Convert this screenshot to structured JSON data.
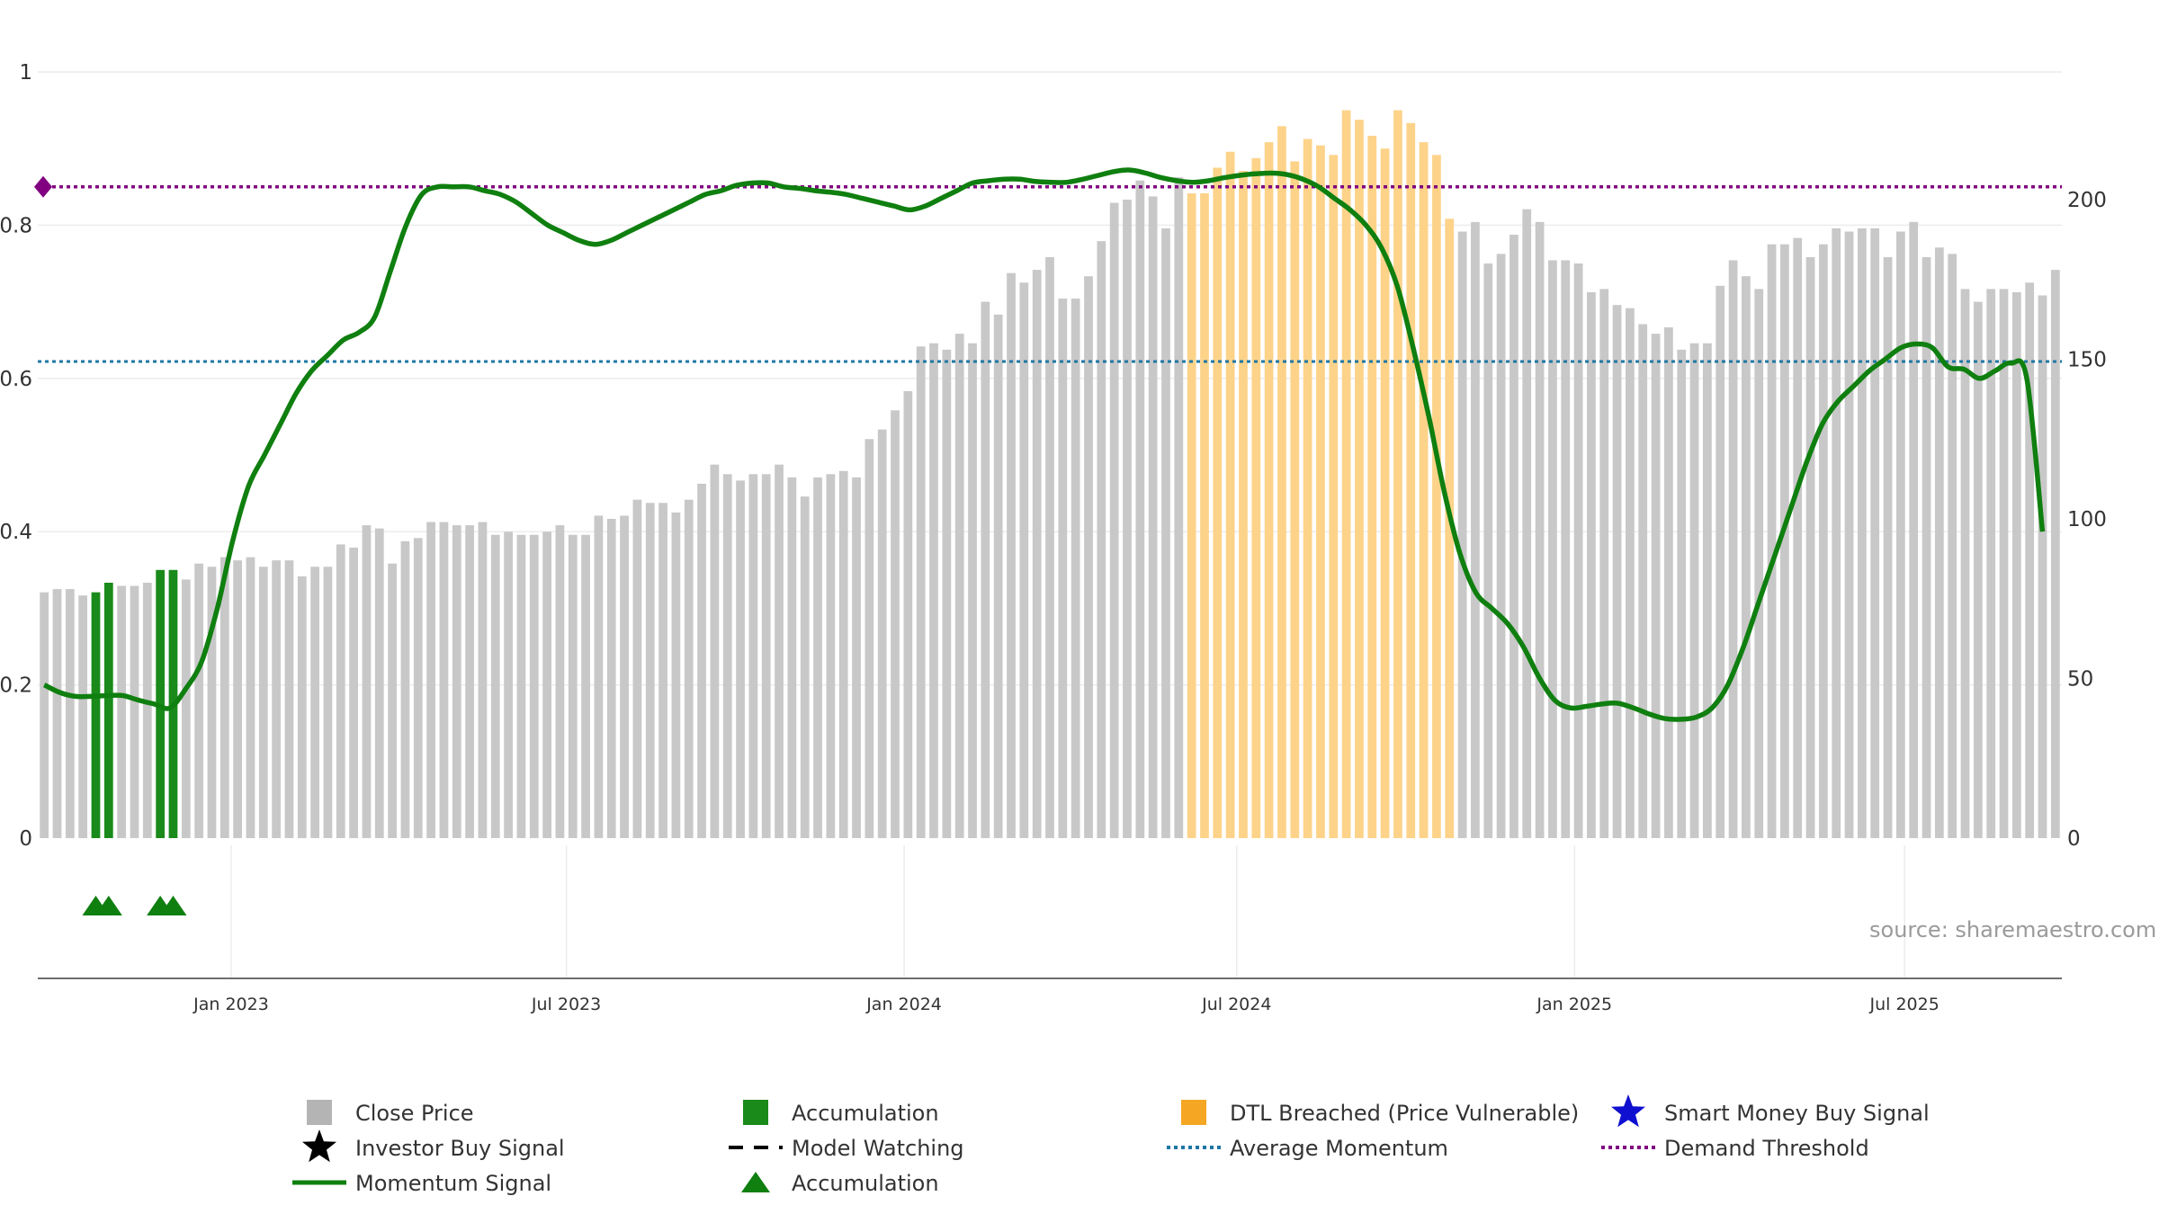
{
  "chart_data": {
    "type": "bar",
    "title": "",
    "source": "source: sharemaestro.com",
    "x_ticks": [
      {
        "label": "Jan 2023",
        "week": 15
      },
      {
        "label": "Jul 2023",
        "week": 41
      },
      {
        "label": "Jan 2024",
        "week": 67.2
      },
      {
        "label": "Jul 2024",
        "week": 93
      },
      {
        "label": "Jan 2025",
        "week": 119.2
      },
      {
        "label": "Jul 2025",
        "week": 144.8
      }
    ],
    "left_axis": {
      "ticks": [
        "0",
        "0.2",
        "0.4",
        "0.6",
        "0.8",
        "1"
      ],
      "ylim": [
        0,
        1
      ]
    },
    "right_axis": {
      "ticks": [
        "0",
        "50",
        "100",
        "150",
        "200"
      ],
      "ylim": [
        0,
        240
      ]
    },
    "average_momentum": 0.622,
    "demand_threshold": 0.85,
    "categories_count": 157,
    "close_price": [
      77,
      78,
      78,
      76,
      77,
      80,
      79,
      79,
      80,
      84,
      84,
      81,
      86,
      85,
      88,
      87,
      88,
      85,
      87,
      87,
      82,
      85,
      85,
      92,
      91,
      98,
      97,
      86,
      93,
      94,
      99,
      99,
      98,
      98,
      99,
      95,
      96,
      95,
      95,
      96,
      98,
      95,
      95,
      101,
      100,
      101,
      106,
      105,
      105,
      102,
      106,
      111,
      117,
      114,
      112,
      114,
      114,
      117,
      113,
      107,
      113,
      114,
      115,
      113,
      125,
      128,
      134,
      140,
      154,
      155,
      153,
      158,
      155,
      168,
      164,
      177,
      174,
      178,
      182,
      169,
      169,
      176,
      187,
      199,
      200,
      206,
      201,
      191,
      207,
      202,
      202,
      210,
      215,
      209,
      213,
      218,
      223,
      212,
      219,
      217,
      214,
      228,
      225,
      220,
      216,
      228,
      224,
      218,
      214,
      194,
      190,
      193,
      180,
      183,
      189,
      197,
      193,
      181,
      181,
      180,
      171,
      172,
      167,
      166,
      161,
      158,
      160,
      153,
      155,
      155,
      173,
      181,
      176,
      172,
      186,
      186,
      188,
      182,
      186,
      191,
      190,
      191,
      191,
      182,
      190,
      193,
      182,
      185,
      183,
      172,
      168,
      172,
      172,
      171,
      174,
      170,
      178
    ],
    "accumulation_bars": [
      4,
      5,
      9,
      10
    ],
    "dtl_breached_range": [
      89,
      109
    ],
    "accumulation_markers": [
      4,
      5,
      9,
      10
    ],
    "momentum_signal": [
      0.2,
      0.19,
      0.185,
      0.185,
      0.186,
      0.186,
      0.18,
      0.175,
      0.17,
      0.195,
      0.23,
      0.3,
      0.39,
      0.46,
      0.5,
      0.54,
      0.58,
      0.61,
      0.63,
      0.65,
      0.66,
      0.68,
      0.74,
      0.8,
      0.84,
      0.85,
      0.85,
      0.85,
      0.845,
      0.84,
      0.83,
      0.815,
      0.8,
      0.79,
      0.78,
      0.775,
      0.78,
      0.79,
      0.8,
      0.81,
      0.82,
      0.83,
      0.84,
      0.845,
      0.852,
      0.855,
      0.855,
      0.85,
      0.848,
      0.845,
      0.843,
      0.84,
      0.835,
      0.83,
      0.825,
      0.82,
      0.825,
      0.835,
      0.845,
      0.855,
      0.858,
      0.86,
      0.86,
      0.857,
      0.856,
      0.856,
      0.86,
      0.865,
      0.87,
      0.872,
      0.868,
      0.862,
      0.858,
      0.856,
      0.858,
      0.862,
      0.865,
      0.867,
      0.868,
      0.866,
      0.86,
      0.85,
      0.835,
      0.82,
      0.8,
      0.77,
      0.72,
      0.64,
      0.55,
      0.45,
      0.37,
      0.32,
      0.3,
      0.28,
      0.25,
      0.21,
      0.18,
      0.17,
      0.172,
      0.175,
      0.176,
      0.17,
      0.162,
      0.156,
      0.155,
      0.158,
      0.17,
      0.2,
      0.25,
      0.31,
      0.37,
      0.43,
      0.49,
      0.54,
      0.57,
      0.59,
      0.61,
      0.625,
      0.64,
      0.645,
      0.64,
      0.615,
      0.612,
      0.6,
      0.61,
      0.62,
      0.6,
      0.4
    ],
    "momentum_x_start": 0.5,
    "momentum_x_end": 155.5,
    "legend": [
      {
        "label": "Close Price",
        "marker": "square-gray",
        "color": "#b4b4b4"
      },
      {
        "label": "Accumulation",
        "marker": "square-green",
        "color": "#1a8a1a"
      },
      {
        "label": "DTL Breached (Price Vulnerable)",
        "marker": "square-orange",
        "color": "#f5a623"
      },
      {
        "label": "Smart Money Buy Signal",
        "marker": "star-blue",
        "color": "#1010d0"
      },
      {
        "label": "Investor Buy Signal",
        "marker": "star-black",
        "color": "#000000"
      },
      {
        "label": "Model Watching",
        "marker": "dash-black",
        "color": "#000000"
      },
      {
        "label": "Average Momentum",
        "marker": "dotted-blue",
        "color": "#1f77a4"
      },
      {
        "label": "Demand Threshold",
        "marker": "dotted-purple",
        "color": "#800080"
      },
      {
        "label": "Momentum Signal",
        "marker": "line-green",
        "color": "#0f7f0f"
      },
      {
        "label": "Accumulation",
        "marker": "triangle-green",
        "color": "#0f7f0f"
      }
    ]
  }
}
